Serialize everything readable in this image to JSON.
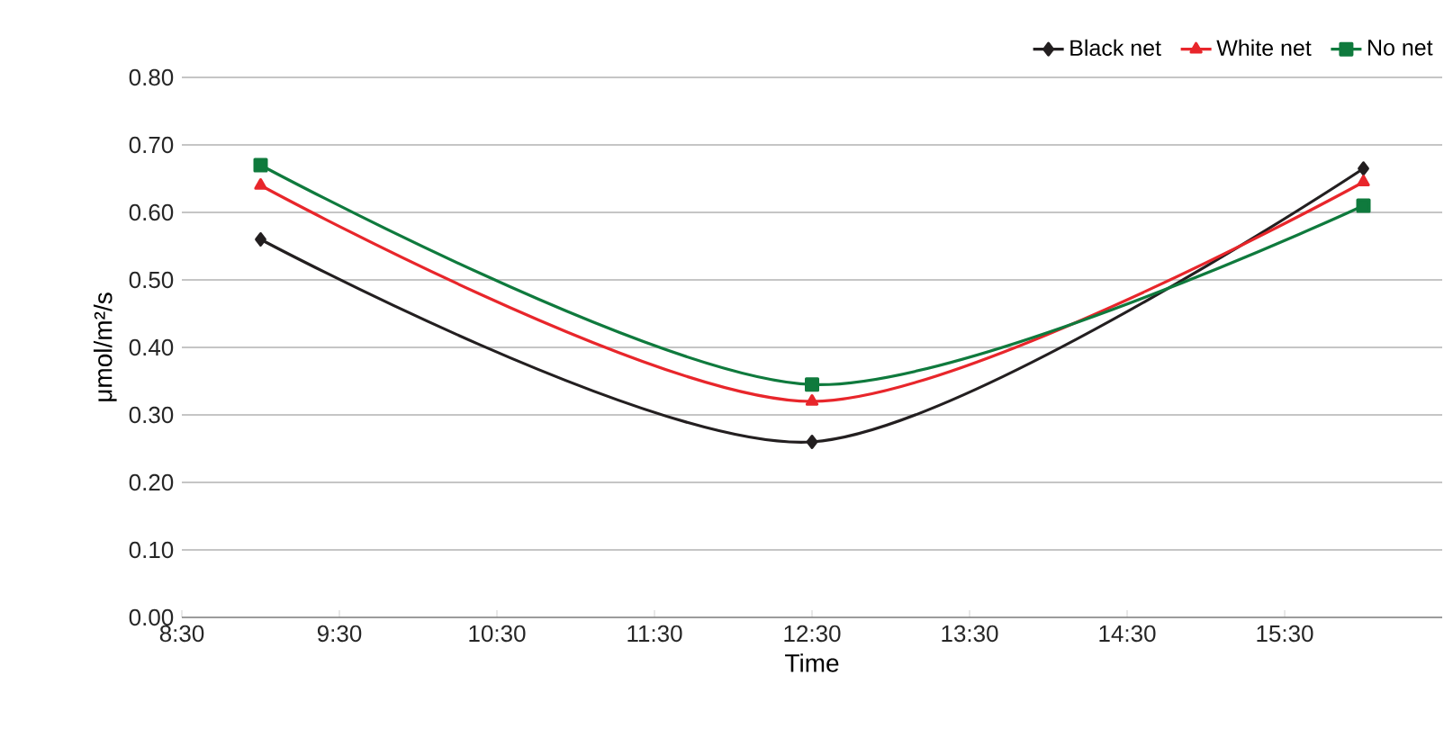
{
  "chart_data": {
    "type": "line",
    "xlabel": "Time",
    "ylabel": "μmol/m²/s",
    "x": [
      9,
      12.5,
      16
    ],
    "series": [
      {
        "name": "Black net",
        "color": "#231f20",
        "marker": "diamond",
        "values": [
          0.56,
          0.26,
          0.665
        ]
      },
      {
        "name": "White net",
        "color": "#e8262b",
        "marker": "triangle",
        "values": [
          0.64,
          0.32,
          0.645
        ]
      },
      {
        "name": "No net",
        "color": "#0f7a3d",
        "marker": "square",
        "values": [
          0.67,
          0.345,
          0.61
        ]
      }
    ],
    "xlim": [
      8.5,
      16.5
    ],
    "xticks": [
      {
        "value": 8.5,
        "label": "8:30"
      },
      {
        "value": 9.5,
        "label": "9:30"
      },
      {
        "value": 10.5,
        "label": "10:30"
      },
      {
        "value": 11.5,
        "label": "11:30"
      },
      {
        "value": 12.5,
        "label": "12:30"
      },
      {
        "value": 13.5,
        "label": "13:30"
      },
      {
        "value": 14.5,
        "label": "14:30"
      },
      {
        "value": 15.5,
        "label": "15:30"
      }
    ],
    "ylim": [
      0,
      0.8
    ],
    "yticks": [
      {
        "value": 0,
        "label": "0.00"
      },
      {
        "value": 0.1,
        "label": "0.10"
      },
      {
        "value": 0.2,
        "label": "0.20"
      },
      {
        "value": 0.3,
        "label": "0.30"
      },
      {
        "value": 0.4,
        "label": "0.40"
      },
      {
        "value": 0.5,
        "label": "0.50"
      },
      {
        "value": 0.6,
        "label": "0.60"
      },
      {
        "value": 0.7,
        "label": "0.70"
      },
      {
        "value": 0.8,
        "label": "0.80"
      }
    ],
    "grid": "y",
    "legend": "top right",
    "line_style": "solid"
  }
}
